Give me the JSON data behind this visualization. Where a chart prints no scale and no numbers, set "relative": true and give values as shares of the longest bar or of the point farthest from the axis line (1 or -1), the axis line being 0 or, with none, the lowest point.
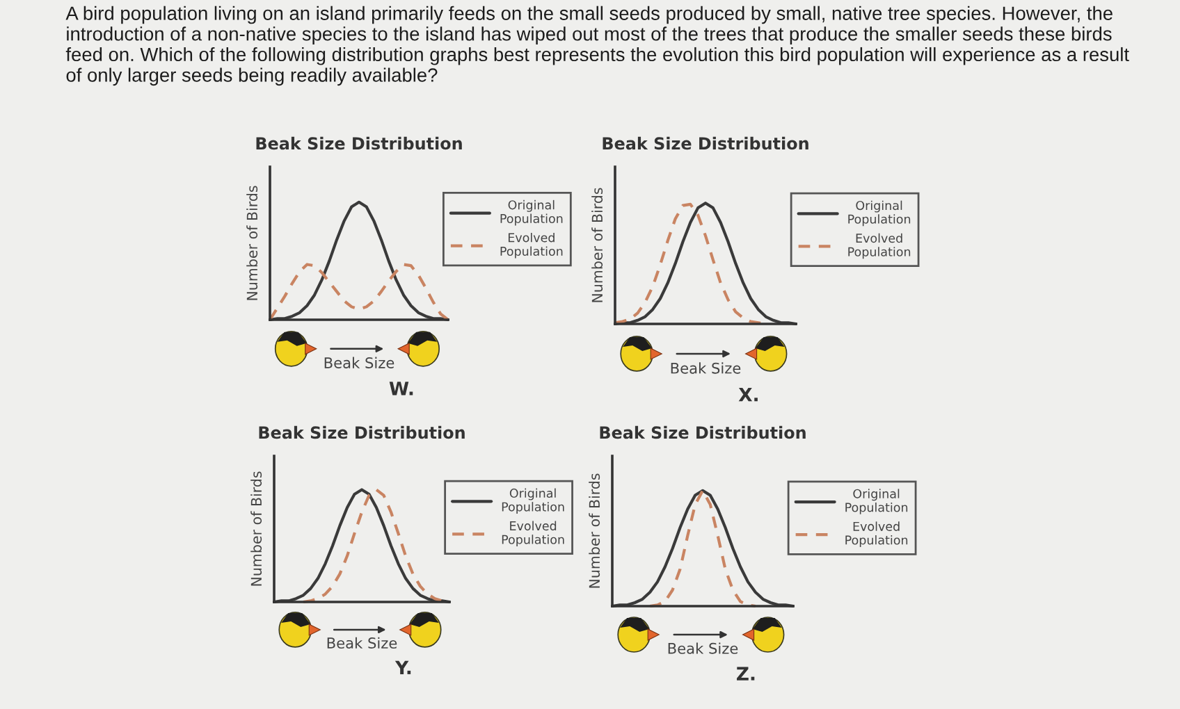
{
  "chart_data": [
    {
      "type": "other",
      "annotations": [
        "A bird population living on an island primarily feeds on the small seeds produced by small, native tree species. However, the introduction of a non-native species to the island has wiped out most of the trees that produce the smaller seeds these birds feed on. Which of the following distribution graphs best represents the evolution this bird population will experience as a result of only larger seeds being readily available?"
      ]
    },
    {
      "type": "line",
      "title": "Beak Size Distribution",
      "xlabel": "Beak Size",
      "ylabel": "Number of Birds",
      "relative": true,
      "legend": "right",
      "annotations": [
        "W."
      ],
      "categories": [
        null,
        null,
        null,
        null,
        null,
        null,
        null,
        null,
        null,
        null,
        null,
        null,
        null,
        null,
        null,
        null,
        null,
        null,
        null,
        null,
        null,
        null,
        null,
        null,
        null
      ],
      "series": [
        {
          "name": "Original Population",
          "color": "#3a3a3a",
          "line_style": "solid",
          "values": [
            0,
            0.01,
            0.01,
            0.03,
            0.06,
            0.12,
            0.21,
            0.34,
            0.5,
            0.68,
            0.84,
            0.96,
            1,
            0.96,
            0.84,
            0.68,
            0.5,
            0.34,
            0.21,
            0.12,
            0.06,
            0.03,
            0.01,
            0.01,
            0
          ]
        },
        {
          "name": "Evolved Population",
          "color": "#c98462",
          "line_style": "dashed",
          "values": [
            0,
            0.1,
            0.2,
            0.31,
            0.41,
            0.47,
            0.46,
            0.4,
            0.32,
            0.24,
            0.16,
            0.11,
            0.09,
            0.11,
            0.16,
            0.24,
            0.33,
            0.41,
            0.47,
            0.46,
            0.38,
            0.27,
            0.15,
            0.05,
            0
          ]
        }
      ]
    },
    {
      "type": "line",
      "title": "Beak Size Distribution",
      "xlabel": "Beak Size",
      "ylabel": "Number of Birds",
      "relative": true,
      "legend": "right",
      "annotations": [
        "X."
      ],
      "categories": [
        null,
        null,
        null,
        null,
        null,
        null,
        null,
        null,
        null,
        null,
        null,
        null,
        null,
        null,
        null,
        null,
        null,
        null,
        null,
        null,
        null,
        null,
        null,
        null,
        null
      ],
      "series": [
        {
          "name": "Original Population",
          "color": "#3a3a3a",
          "line_style": "solid",
          "values": [
            0,
            0.01,
            0.01,
            0.03,
            0.06,
            0.12,
            0.21,
            0.34,
            0.5,
            0.68,
            0.84,
            0.96,
            1,
            0.96,
            0.84,
            0.68,
            0.5,
            0.34,
            0.21,
            0.12,
            0.06,
            0.03,
            0.01,
            0.01,
            0
          ]
        },
        {
          "name": "Evolved Population",
          "color": "#c98462",
          "line_style": "dashed",
          "values": [
            0.01,
            0.02,
            0.04,
            0.09,
            0.18,
            0.31,
            0.49,
            0.69,
            0.87,
            0.98,
            0.99,
            0.9,
            0.73,
            0.53,
            0.34,
            0.2,
            0.1,
            0.05,
            0.02,
            0.01,
            0,
            null,
            null,
            null,
            null
          ]
        }
      ]
    },
    {
      "type": "line",
      "title": "Beak Size Distribution",
      "xlabel": "Beak Size",
      "ylabel": "Number of Birds",
      "relative": true,
      "legend": "right",
      "annotations": [
        "Y."
      ],
      "categories": [
        null,
        null,
        null,
        null,
        null,
        null,
        null,
        null,
        null,
        null,
        null,
        null,
        null,
        null,
        null,
        null,
        null,
        null,
        null,
        null,
        null,
        null,
        null,
        null,
        null
      ],
      "series": [
        {
          "name": "Original Population",
          "color": "#3a3a3a",
          "line_style": "solid",
          "values": [
            0,
            0.01,
            0.01,
            0.03,
            0.06,
            0.12,
            0.21,
            0.34,
            0.5,
            0.68,
            0.84,
            0.96,
            1,
            0.96,
            0.84,
            0.68,
            0.5,
            0.34,
            0.21,
            0.12,
            0.06,
            0.03,
            0.01,
            0.01,
            0
          ]
        },
        {
          "name": "Evolved Population",
          "color": "#c98462",
          "line_style": "dashed",
          "values": [
            null,
            null,
            null,
            null,
            0,
            0.01,
            0.03,
            0.07,
            0.14,
            0.25,
            0.41,
            0.61,
            0.8,
            0.95,
            1,
            0.95,
            0.8,
            0.61,
            0.41,
            0.25,
            0.14,
            0.07,
            0.03,
            0.01,
            0
          ]
        }
      ]
    },
    {
      "type": "line",
      "title": "Beak Size Distribution",
      "xlabel": "Beak Size",
      "ylabel": "Number of Birds",
      "relative": true,
      "legend": "right",
      "annotations": [
        "Z."
      ],
      "categories": [
        null,
        null,
        null,
        null,
        null,
        null,
        null,
        null,
        null,
        null,
        null,
        null,
        null,
        null,
        null,
        null,
        null,
        null,
        null,
        null,
        null,
        null,
        null,
        null,
        null
      ],
      "series": [
        {
          "name": "Original Population",
          "color": "#3a3a3a",
          "line_style": "solid",
          "values": [
            0,
            0.01,
            0.01,
            0.03,
            0.06,
            0.12,
            0.21,
            0.34,
            0.5,
            0.68,
            0.84,
            0.96,
            1,
            0.96,
            0.84,
            0.68,
            0.5,
            0.34,
            0.21,
            0.12,
            0.06,
            0.03,
            0.01,
            0.01,
            0
          ]
        },
        {
          "name": "Evolved Population",
          "color": "#c98462",
          "line_style": "dashed",
          "values": [
            null,
            null,
            null,
            null,
            null,
            0,
            0.01,
            0.04,
            0.14,
            0.32,
            0.61,
            0.88,
            1,
            0.88,
            0.61,
            0.32,
            0.14,
            0.04,
            0.01,
            0,
            null,
            null,
            null,
            null,
            null
          ]
        }
      ]
    }
  ]
}
